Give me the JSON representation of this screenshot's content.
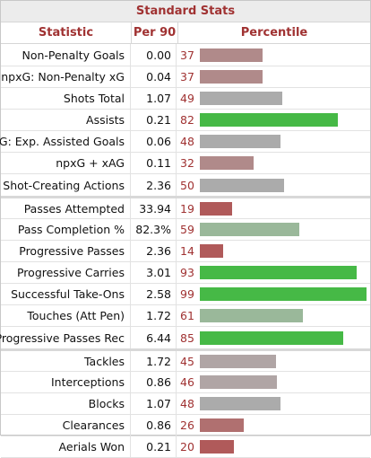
{
  "table": {
    "caption": "Standard Stats",
    "headers": {
      "statistic": "Statistic",
      "per90": "Per 90",
      "percentile": "Percentile"
    },
    "colors": {
      "bright_green": "#46b946",
      "light_green": "#9ab89a",
      "gray": "#ababab",
      "mauve": "#b08a8a",
      "red": "#b05a5a"
    },
    "rows": [
      {
        "stat": "Non-Penalty Goals",
        "per90": "0.00",
        "percentile": 37,
        "color": "#b08a8a"
      },
      {
        "stat": "npxG: Non-Penalty xG",
        "per90": "0.04",
        "percentile": 37,
        "color": "#b08a8a"
      },
      {
        "stat": "Shots Total",
        "per90": "1.07",
        "percentile": 49,
        "color": "#ababab"
      },
      {
        "stat": "Assists",
        "per90": "0.21",
        "percentile": 82,
        "color": "#46b946"
      },
      {
        "stat": "xAG: Exp. Assisted Goals",
        "per90": "0.06",
        "percentile": 48,
        "color": "#ababab"
      },
      {
        "stat": "npxG + xAG",
        "per90": "0.11",
        "percentile": 32,
        "color": "#b08a8a"
      },
      {
        "stat": "Shot-Creating Actions",
        "per90": "2.36",
        "percentile": 50,
        "color": "#ababab"
      },
      {
        "stat": "Passes Attempted",
        "per90": "33.94",
        "percentile": 19,
        "color": "#b05a5a"
      },
      {
        "stat": "Pass Completion %",
        "per90": "82.3%",
        "percentile": 59,
        "color": "#9ab89a"
      },
      {
        "stat": "Progressive Passes",
        "per90": "2.36",
        "percentile": 14,
        "color": "#b05a5a"
      },
      {
        "stat": "Progressive Carries",
        "per90": "3.01",
        "percentile": 93,
        "color": "#46b946"
      },
      {
        "stat": "Successful Take-Ons",
        "per90": "2.58",
        "percentile": 99,
        "color": "#46b946"
      },
      {
        "stat": "Touches (Att Pen)",
        "per90": "1.72",
        "percentile": 61,
        "color": "#9ab89a"
      },
      {
        "stat": "Progressive Passes Rec",
        "per90": "6.44",
        "percentile": 85,
        "color": "#46b946"
      },
      {
        "stat": "Tackles",
        "per90": "1.72",
        "percentile": 45,
        "color": "#b0a5a5"
      },
      {
        "stat": "Interceptions",
        "per90": "0.86",
        "percentile": 46,
        "color": "#b0a5a5"
      },
      {
        "stat": "Blocks",
        "per90": "1.07",
        "percentile": 48,
        "color": "#ababab"
      },
      {
        "stat": "Clearances",
        "per90": "0.86",
        "percentile": 26,
        "color": "#b07070"
      },
      {
        "stat": "Aerials Won",
        "per90": "0.21",
        "percentile": 20,
        "color": "#b05a5a"
      }
    ]
  }
}
